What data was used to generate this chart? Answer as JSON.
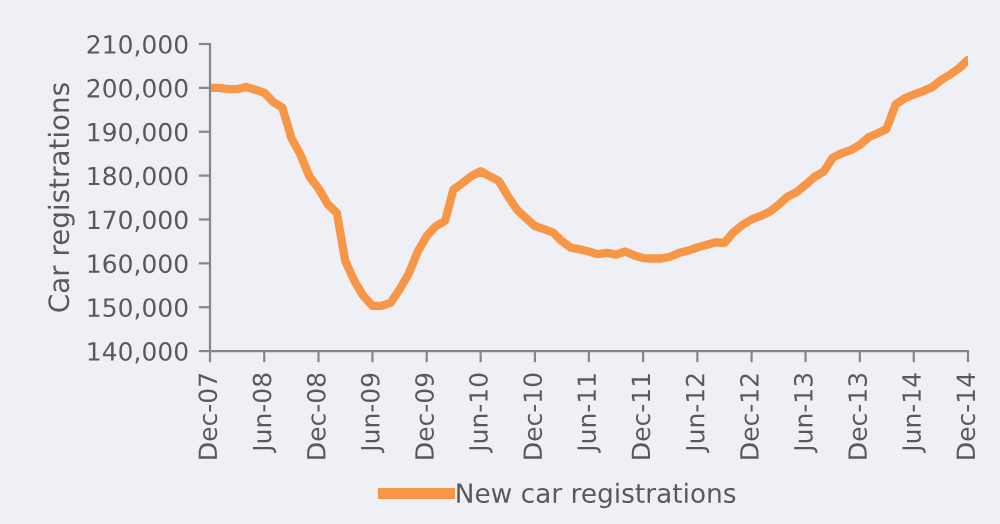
{
  "chart_data": {
    "type": "line",
    "ylabel": "Car registrations",
    "x": [
      "2007-12",
      "2008-01",
      "2008-02",
      "2008-03",
      "2008-04",
      "2008-05",
      "2008-06",
      "2008-07",
      "2008-08",
      "2008-09",
      "2008-10",
      "2008-11",
      "2008-12",
      "2009-01",
      "2009-02",
      "2009-03",
      "2009-04",
      "2009-05",
      "2009-06",
      "2009-07",
      "2009-08",
      "2009-09",
      "2009-10",
      "2009-11",
      "2009-12",
      "2010-01",
      "2010-02",
      "2010-03",
      "2010-04",
      "2010-05",
      "2010-06",
      "2010-07",
      "2010-08",
      "2010-09",
      "2010-10",
      "2010-11",
      "2010-12",
      "2011-01",
      "2011-02",
      "2011-03",
      "2011-04",
      "2011-05",
      "2011-06",
      "2011-07",
      "2011-08",
      "2011-09",
      "2011-10",
      "2011-11",
      "2011-12",
      "2012-01",
      "2012-02",
      "2012-03",
      "2012-04",
      "2012-05",
      "2012-06",
      "2012-07",
      "2012-08",
      "2012-09",
      "2012-10",
      "2012-11",
      "2012-12",
      "2013-01",
      "2013-02",
      "2013-03",
      "2013-04",
      "2013-05",
      "2013-06",
      "2013-07",
      "2013-08",
      "2013-09",
      "2013-10",
      "2013-11",
      "2013-12",
      "2014-01",
      "2014-02",
      "2014-03",
      "2014-04",
      "2014-05",
      "2014-06",
      "2014-07",
      "2014-08",
      "2014-09",
      "2014-10",
      "2014-11",
      "2014-12"
    ],
    "series": [
      {
        "name": "New car registrations",
        "color": "#f79646",
        "values": [
          200000,
          200000,
          199700,
          199700,
          200200,
          199600,
          198900,
          196800,
          195500,
          188500,
          184800,
          179700,
          177100,
          173500,
          171500,
          160600,
          156000,
          152600,
          150300,
          150300,
          151000,
          154100,
          157600,
          162700,
          166200,
          168500,
          169700,
          176800,
          178300,
          179900,
          181000,
          179900,
          178800,
          175300,
          172300,
          170300,
          168500,
          167800,
          167000,
          165100,
          163600,
          163200,
          162700,
          162100,
          162400,
          162000,
          162700,
          161800,
          161200,
          161100,
          161100,
          161500,
          162400,
          162900,
          163600,
          164200,
          164800,
          164700,
          167100,
          168800,
          170000,
          170800,
          171800,
          173300,
          175200,
          176200,
          177900,
          179700,
          180900,
          184100,
          185100,
          185800,
          187000,
          188800,
          189700,
          190600,
          196200,
          197600,
          198500,
          199200,
          200100,
          201800,
          203000,
          204500,
          206400
        ]
      }
    ],
    "xlim": [
      "2007-12",
      "2014-12"
    ],
    "xticks": [
      {
        "value": "2007-12",
        "label": "Dec-07"
      },
      {
        "value": "2008-06",
        "label": "Jun-08"
      },
      {
        "value": "2008-12",
        "label": "Dec-08"
      },
      {
        "value": "2009-06",
        "label": "Jun-09"
      },
      {
        "value": "2009-12",
        "label": "Dec-09"
      },
      {
        "value": "2010-06",
        "label": "Jun-10"
      },
      {
        "value": "2010-12",
        "label": "Dec-10"
      },
      {
        "value": "2011-06",
        "label": "Jun-11"
      },
      {
        "value": "2011-12",
        "label": "Dec-11"
      },
      {
        "value": "2012-06",
        "label": "Jun-12"
      },
      {
        "value": "2012-12",
        "label": "Dec-12"
      },
      {
        "value": "2013-06",
        "label": "Jun-13"
      },
      {
        "value": "2013-12",
        "label": "Dec-13"
      },
      {
        "value": "2014-06",
        "label": "Jun-14"
      },
      {
        "value": "2014-12",
        "label": "Dec-14"
      }
    ],
    "ylim": [
      140000,
      210000
    ],
    "yticks": [
      {
        "value": 140000,
        "label": "140,000"
      },
      {
        "value": 150000,
        "label": "150,000"
      },
      {
        "value": 160000,
        "label": "160,000"
      },
      {
        "value": 170000,
        "label": "170,000"
      },
      {
        "value": 180000,
        "label": "180,000"
      },
      {
        "value": 190000,
        "label": "190,000"
      },
      {
        "value": 200000,
        "label": "200,000"
      },
      {
        "value": 210000,
        "label": "210,000"
      }
    ],
    "grid": false,
    "legend": "bottom",
    "marker": "none",
    "line_style": "solid"
  }
}
